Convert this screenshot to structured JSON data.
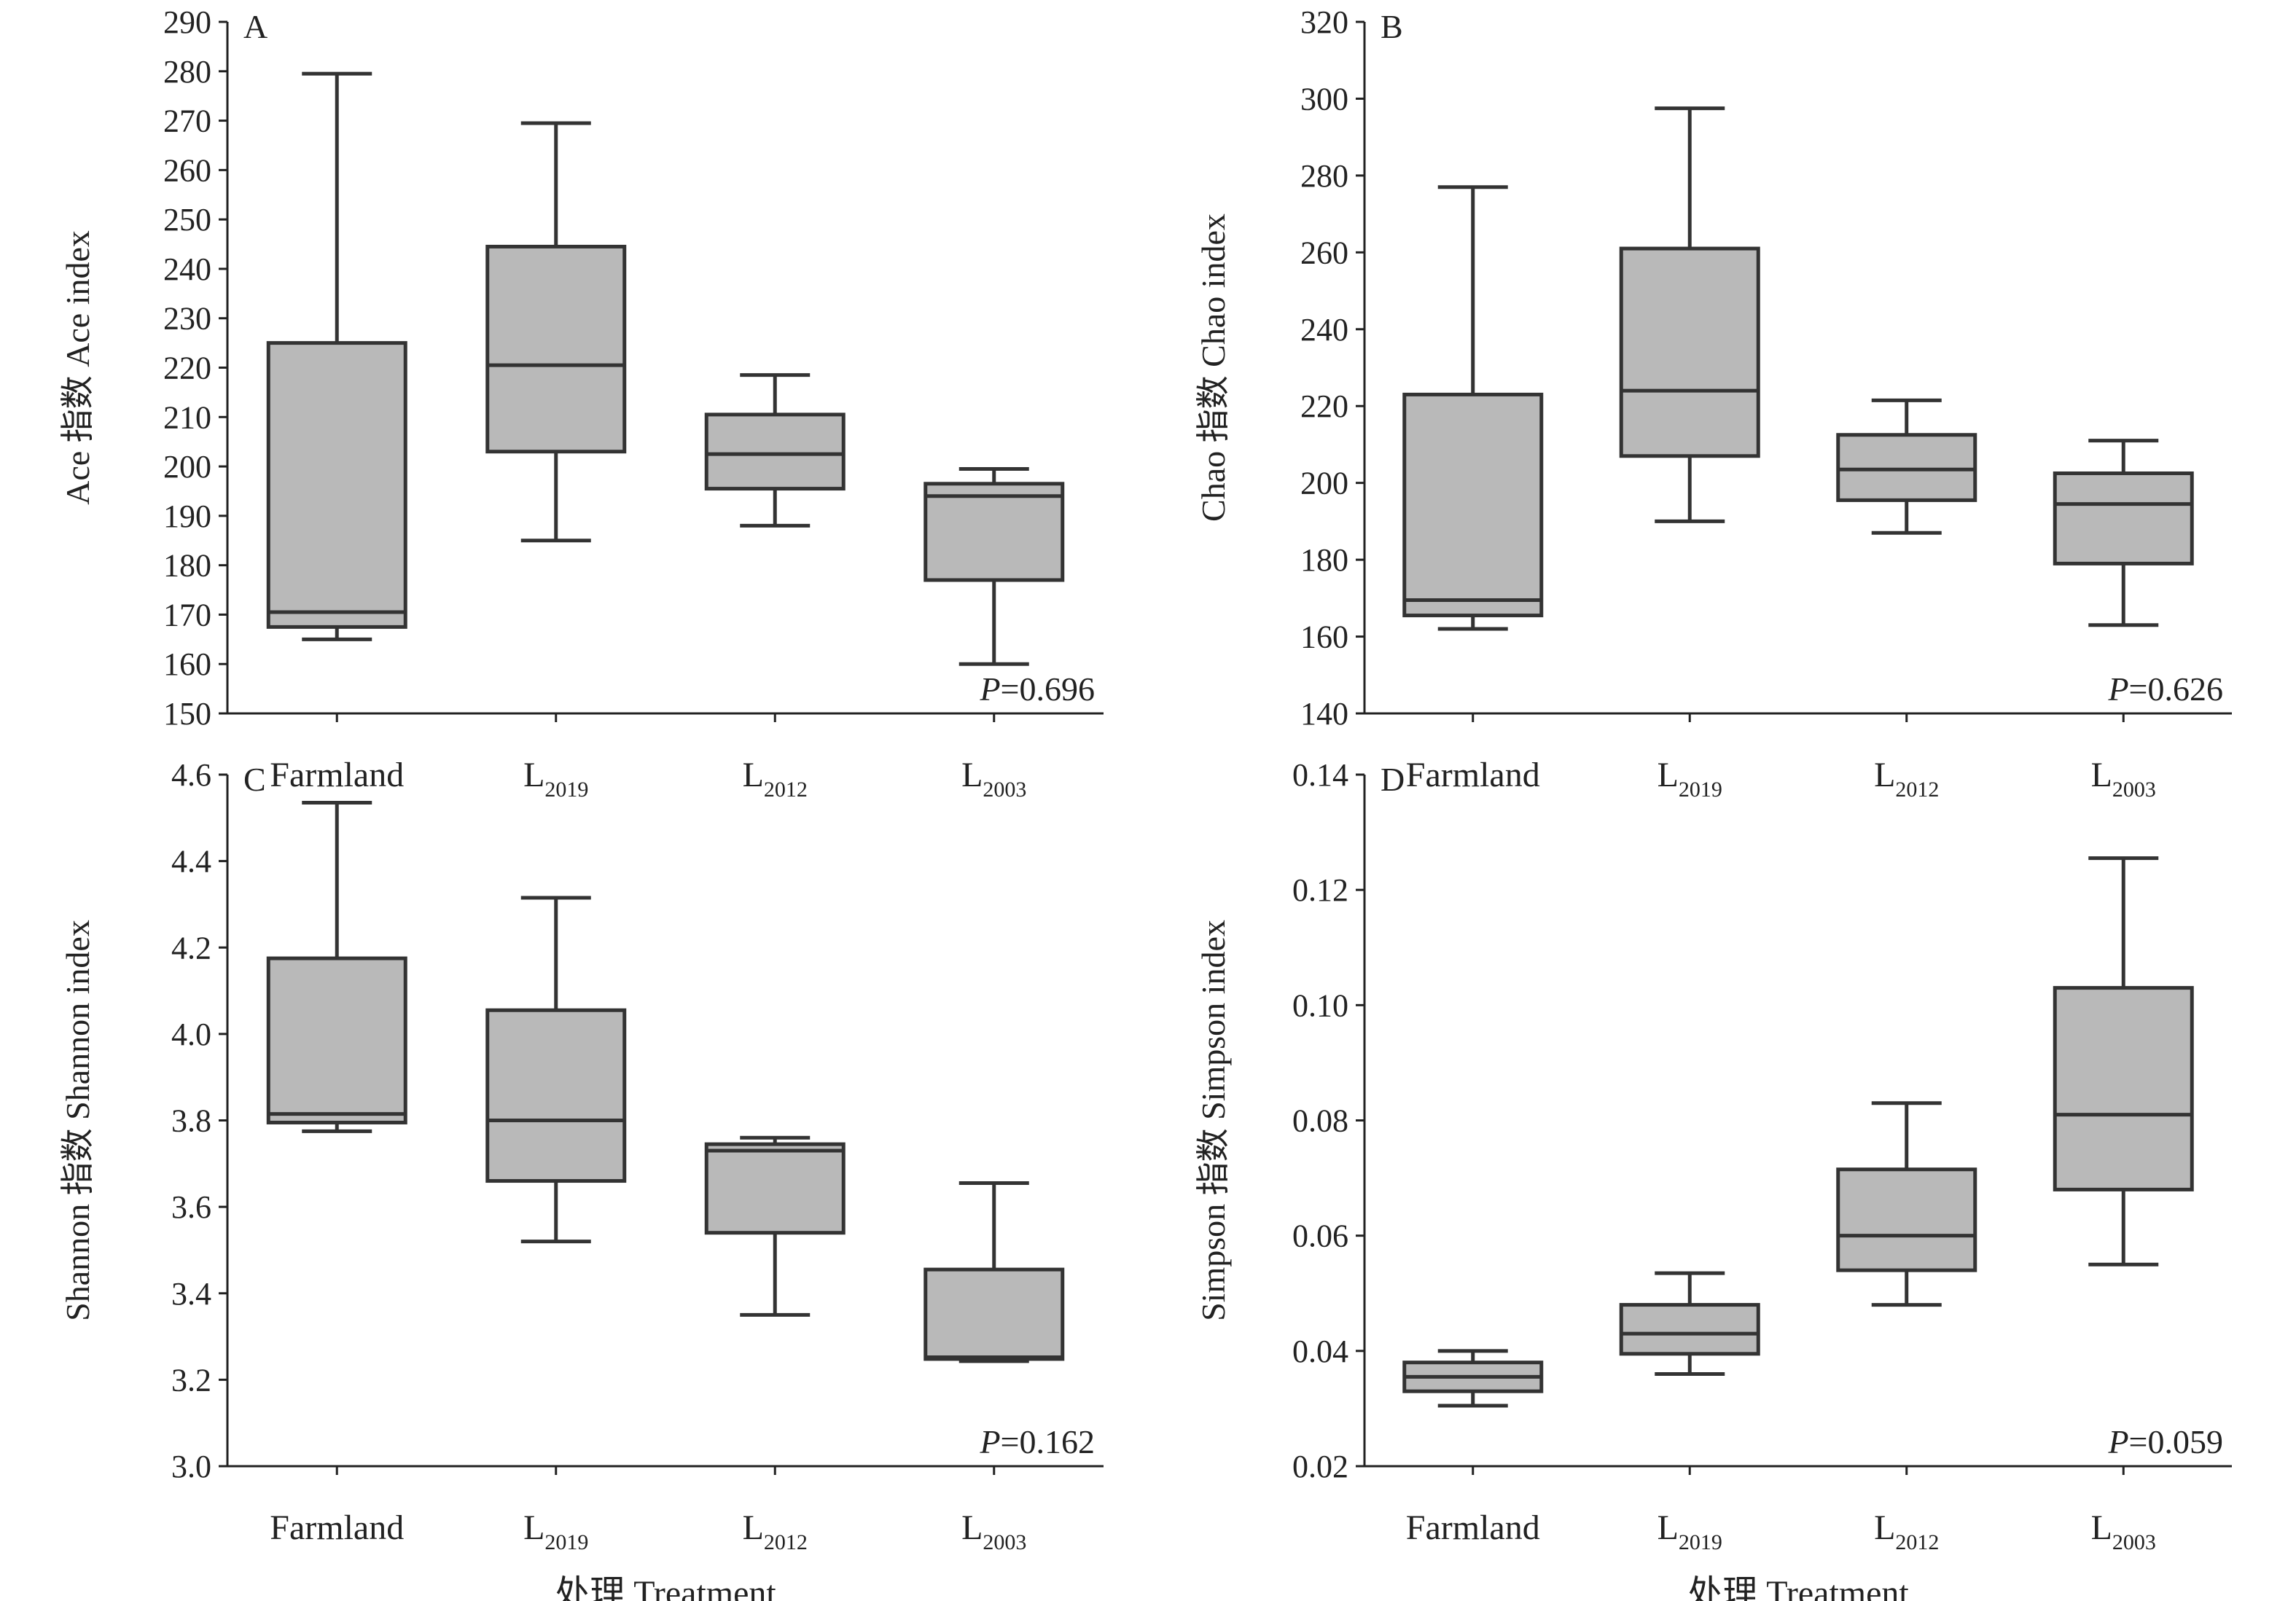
{
  "chart_data": [
    {
      "type": "box",
      "panel_letter": "A",
      "ylabel": "Ace 指数 Ace index",
      "xlabel": "",
      "categories": [
        {
          "main": "Farmland",
          "sub": ""
        },
        {
          "main": "L",
          "sub": "2019"
        },
        {
          "main": "L",
          "sub": "2012"
        },
        {
          "main": "L",
          "sub": "2003"
        }
      ],
      "ylim": [
        150,
        290
      ],
      "yticks": [
        150,
        160,
        170,
        180,
        190,
        200,
        210,
        220,
        230,
        240,
        250,
        260,
        270,
        280,
        290
      ],
      "boxes": [
        {
          "min": 165,
          "q1": 167.5,
          "median": 170.5,
          "q3": 225,
          "max": 279.5
        },
        {
          "min": 185,
          "q1": 203,
          "median": 220.5,
          "q3": 244.5,
          "max": 269.5
        },
        {
          "min": 188,
          "q1": 195.5,
          "median": 202.5,
          "q3": 210.5,
          "max": 218.5
        },
        {
          "min": 160,
          "q1": 177,
          "median": 194,
          "q3": 196.5,
          "max": 199.5
        }
      ],
      "p_label": "P",
      "p_value": "=0.696"
    },
    {
      "type": "box",
      "panel_letter": "B",
      "ylabel": "Chao 指数 Chao index",
      "xlabel": "",
      "categories": [
        {
          "main": "Farmland",
          "sub": ""
        },
        {
          "main": "L",
          "sub": "2019"
        },
        {
          "main": "L",
          "sub": "2012"
        },
        {
          "main": "L",
          "sub": "2003"
        }
      ],
      "ylim": [
        140,
        320
      ],
      "yticks": [
        140,
        160,
        180,
        200,
        220,
        240,
        260,
        280,
        300,
        320
      ],
      "boxes": [
        {
          "min": 162,
          "q1": 165.5,
          "median": 169.5,
          "q3": 223,
          "max": 277
        },
        {
          "min": 190,
          "q1": 207,
          "median": 224,
          "q3": 261,
          "max": 297.5
        },
        {
          "min": 187,
          "q1": 195.5,
          "median": 203.5,
          "q3": 212.5,
          "max": 221.5
        },
        {
          "min": 163,
          "q1": 179,
          "median": 194.5,
          "q3": 202.5,
          "max": 211
        }
      ],
      "p_label": "P",
      "p_value": "=0.626"
    },
    {
      "type": "box",
      "panel_letter": "C",
      "ylabel": "Shannon 指数 Shannon index",
      "xlabel": "处理 Treatment",
      "categories": [
        {
          "main": "Farmland",
          "sub": ""
        },
        {
          "main": "L",
          "sub": "2019"
        },
        {
          "main": "L",
          "sub": "2012"
        },
        {
          "main": "L",
          "sub": "2003"
        }
      ],
      "ylim": [
        3.0,
        4.6
      ],
      "yticks": [
        "3.0",
        "3.2",
        "3.4",
        "3.6",
        "3.8",
        "4.0",
        "4.2",
        "4.4",
        "4.6"
      ],
      "boxes": [
        {
          "min": 3.775,
          "q1": 3.795,
          "median": 3.815,
          "q3": 4.175,
          "max": 4.535
        },
        {
          "min": 3.52,
          "q1": 3.66,
          "median": 3.8,
          "q3": 4.055,
          "max": 4.315
        },
        {
          "min": 3.35,
          "q1": 3.54,
          "median": 3.73,
          "q3": 3.745,
          "max": 3.76
        },
        {
          "min": 3.243,
          "q1": 3.248,
          "median": 3.252,
          "q3": 3.455,
          "max": 3.655
        }
      ],
      "p_label": "P",
      "p_value": "=0.162"
    },
    {
      "type": "box",
      "panel_letter": "D",
      "ylabel": "Simpson 指数 Simpson index",
      "xlabel": "处理 Treatment",
      "categories": [
        {
          "main": "Farmland",
          "sub": ""
        },
        {
          "main": "L",
          "sub": "2019"
        },
        {
          "main": "L",
          "sub": "2012"
        },
        {
          "main": "L",
          "sub": "2003"
        }
      ],
      "ylim": [
        0.02,
        0.14
      ],
      "yticks": [
        "0.02",
        "0.04",
        "0.06",
        "0.08",
        "0.10",
        "0.12",
        "0.14"
      ],
      "boxes": [
        {
          "min": 0.0305,
          "q1": 0.033,
          "median": 0.0355,
          "q3": 0.038,
          "max": 0.04
        },
        {
          "min": 0.036,
          "q1": 0.0395,
          "median": 0.043,
          "q3": 0.048,
          "max": 0.0535
        },
        {
          "min": 0.048,
          "q1": 0.054,
          "median": 0.06,
          "q3": 0.0715,
          "max": 0.083
        },
        {
          "min": 0.055,
          "q1": 0.068,
          "median": 0.081,
          "q3": 0.103,
          "max": 0.1255
        }
      ],
      "p_label": "P",
      "p_value": "=0.059"
    }
  ]
}
